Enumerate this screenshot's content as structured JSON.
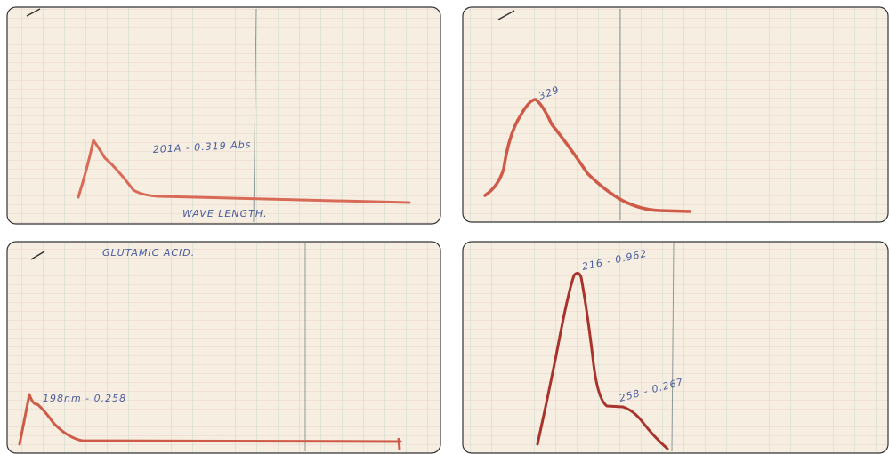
{
  "panels": [
    {
      "annotations": [
        "201A - 0.319 Abs",
        "WAVE LENGTH."
      ]
    },
    {
      "annotations": [
        "329"
      ]
    },
    {
      "annotations": [
        "GLUTAMIC ACID.",
        "198nm - 0.258"
      ]
    },
    {
      "annotations": [
        "216 - 0.962",
        "258 - 0.267"
      ]
    }
  ]
}
